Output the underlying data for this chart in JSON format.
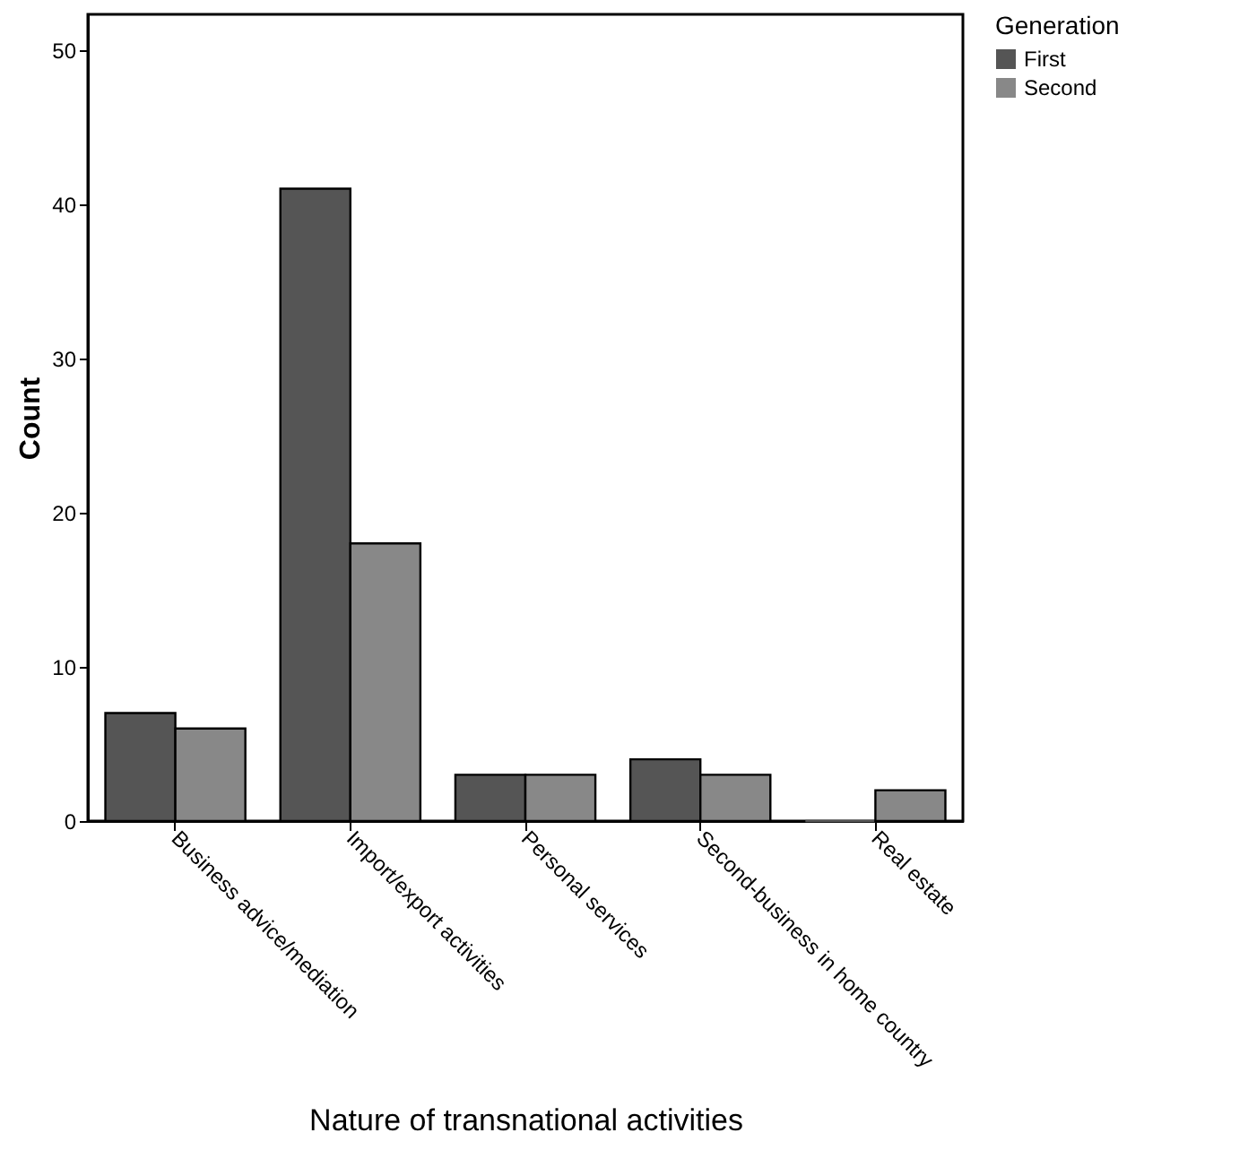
{
  "chart_data": {
    "type": "bar",
    "xlabel": "Nature of transnational activities",
    "ylabel": "Count",
    "legend_title": "Generation",
    "categories": [
      "Business advice/mediation",
      "Import/export activities",
      "Personal services",
      "Second-business in home country",
      "Real estate"
    ],
    "series": [
      {
        "name": "First",
        "color": "#555555",
        "values": [
          7,
          41,
          3,
          4,
          0
        ]
      },
      {
        "name": "Second",
        "color": "#888888",
        "values": [
          6,
          18,
          3,
          3,
          2
        ]
      }
    ],
    "ylim": [
      0,
      52.3
    ],
    "yticks": [
      0,
      10,
      20,
      30,
      40,
      50
    ],
    "grid": false,
    "legend": "top right"
  }
}
